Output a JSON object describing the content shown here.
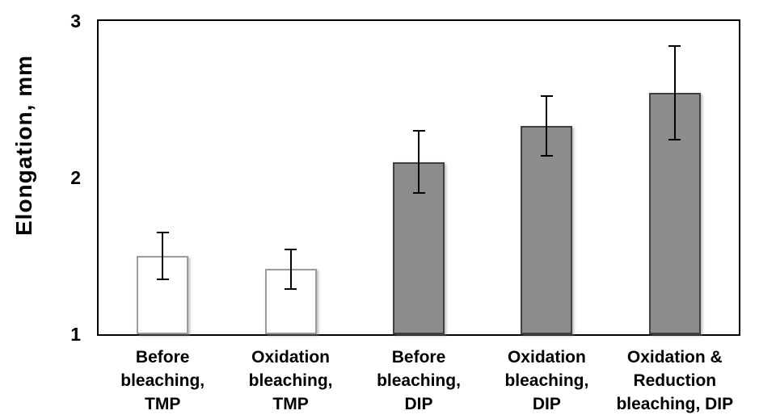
{
  "figure": {
    "background": "#ffffff"
  },
  "colors": {
    "axis": "#000000",
    "text": "#000000",
    "error_bar": "#000000",
    "tmp_bar_fill": "#ffffff",
    "tmp_bar_border": "#9b9b9b",
    "dip_bar_fill": "#8c8c8c",
    "dip_bar_border": "#404040"
  },
  "chart_data": {
    "type": "bar",
    "title": "",
    "xlabel": "",
    "ylabel": "Elongation, mm",
    "ylim": [
      1,
      3
    ],
    "yticks": [
      1,
      2,
      3
    ],
    "grid": false,
    "legend": "none",
    "categories": [
      "Before bleaching, TMP",
      "Oxidation bleaching, TMP",
      "Before bleaching, DIP",
      "Oxidation bleaching, DIP",
      "Oxidation & Reduction bleaching, DIP"
    ],
    "category_lines": [
      [
        "Before",
        "bleaching,",
        "TMP"
      ],
      [
        "Oxidation",
        "bleaching,",
        "TMP"
      ],
      [
        "Before",
        "bleaching,",
        "DIP"
      ],
      [
        "Oxidation",
        "bleaching,",
        "DIP"
      ],
      [
        "Oxidation &",
        "Reduction",
        "bleaching, DIP"
      ]
    ],
    "values": [
      1.5,
      1.42,
      2.1,
      2.33,
      2.54
    ],
    "error_plus": [
      0.15,
      0.12,
      0.2,
      0.19,
      0.3
    ],
    "error_minus": [
      0.15,
      0.13,
      0.2,
      0.19,
      0.3
    ],
    "bar_groups": [
      "TMP",
      "TMP",
      "DIP",
      "DIP",
      "DIP"
    ],
    "bar_fills": [
      "#ffffff",
      "#ffffff",
      "#8c8c8c",
      "#8c8c8c",
      "#8c8c8c"
    ],
    "bar_borders": [
      "#9b9b9b",
      "#9b9b9b",
      "#404040",
      "#404040",
      "#404040"
    ]
  }
}
